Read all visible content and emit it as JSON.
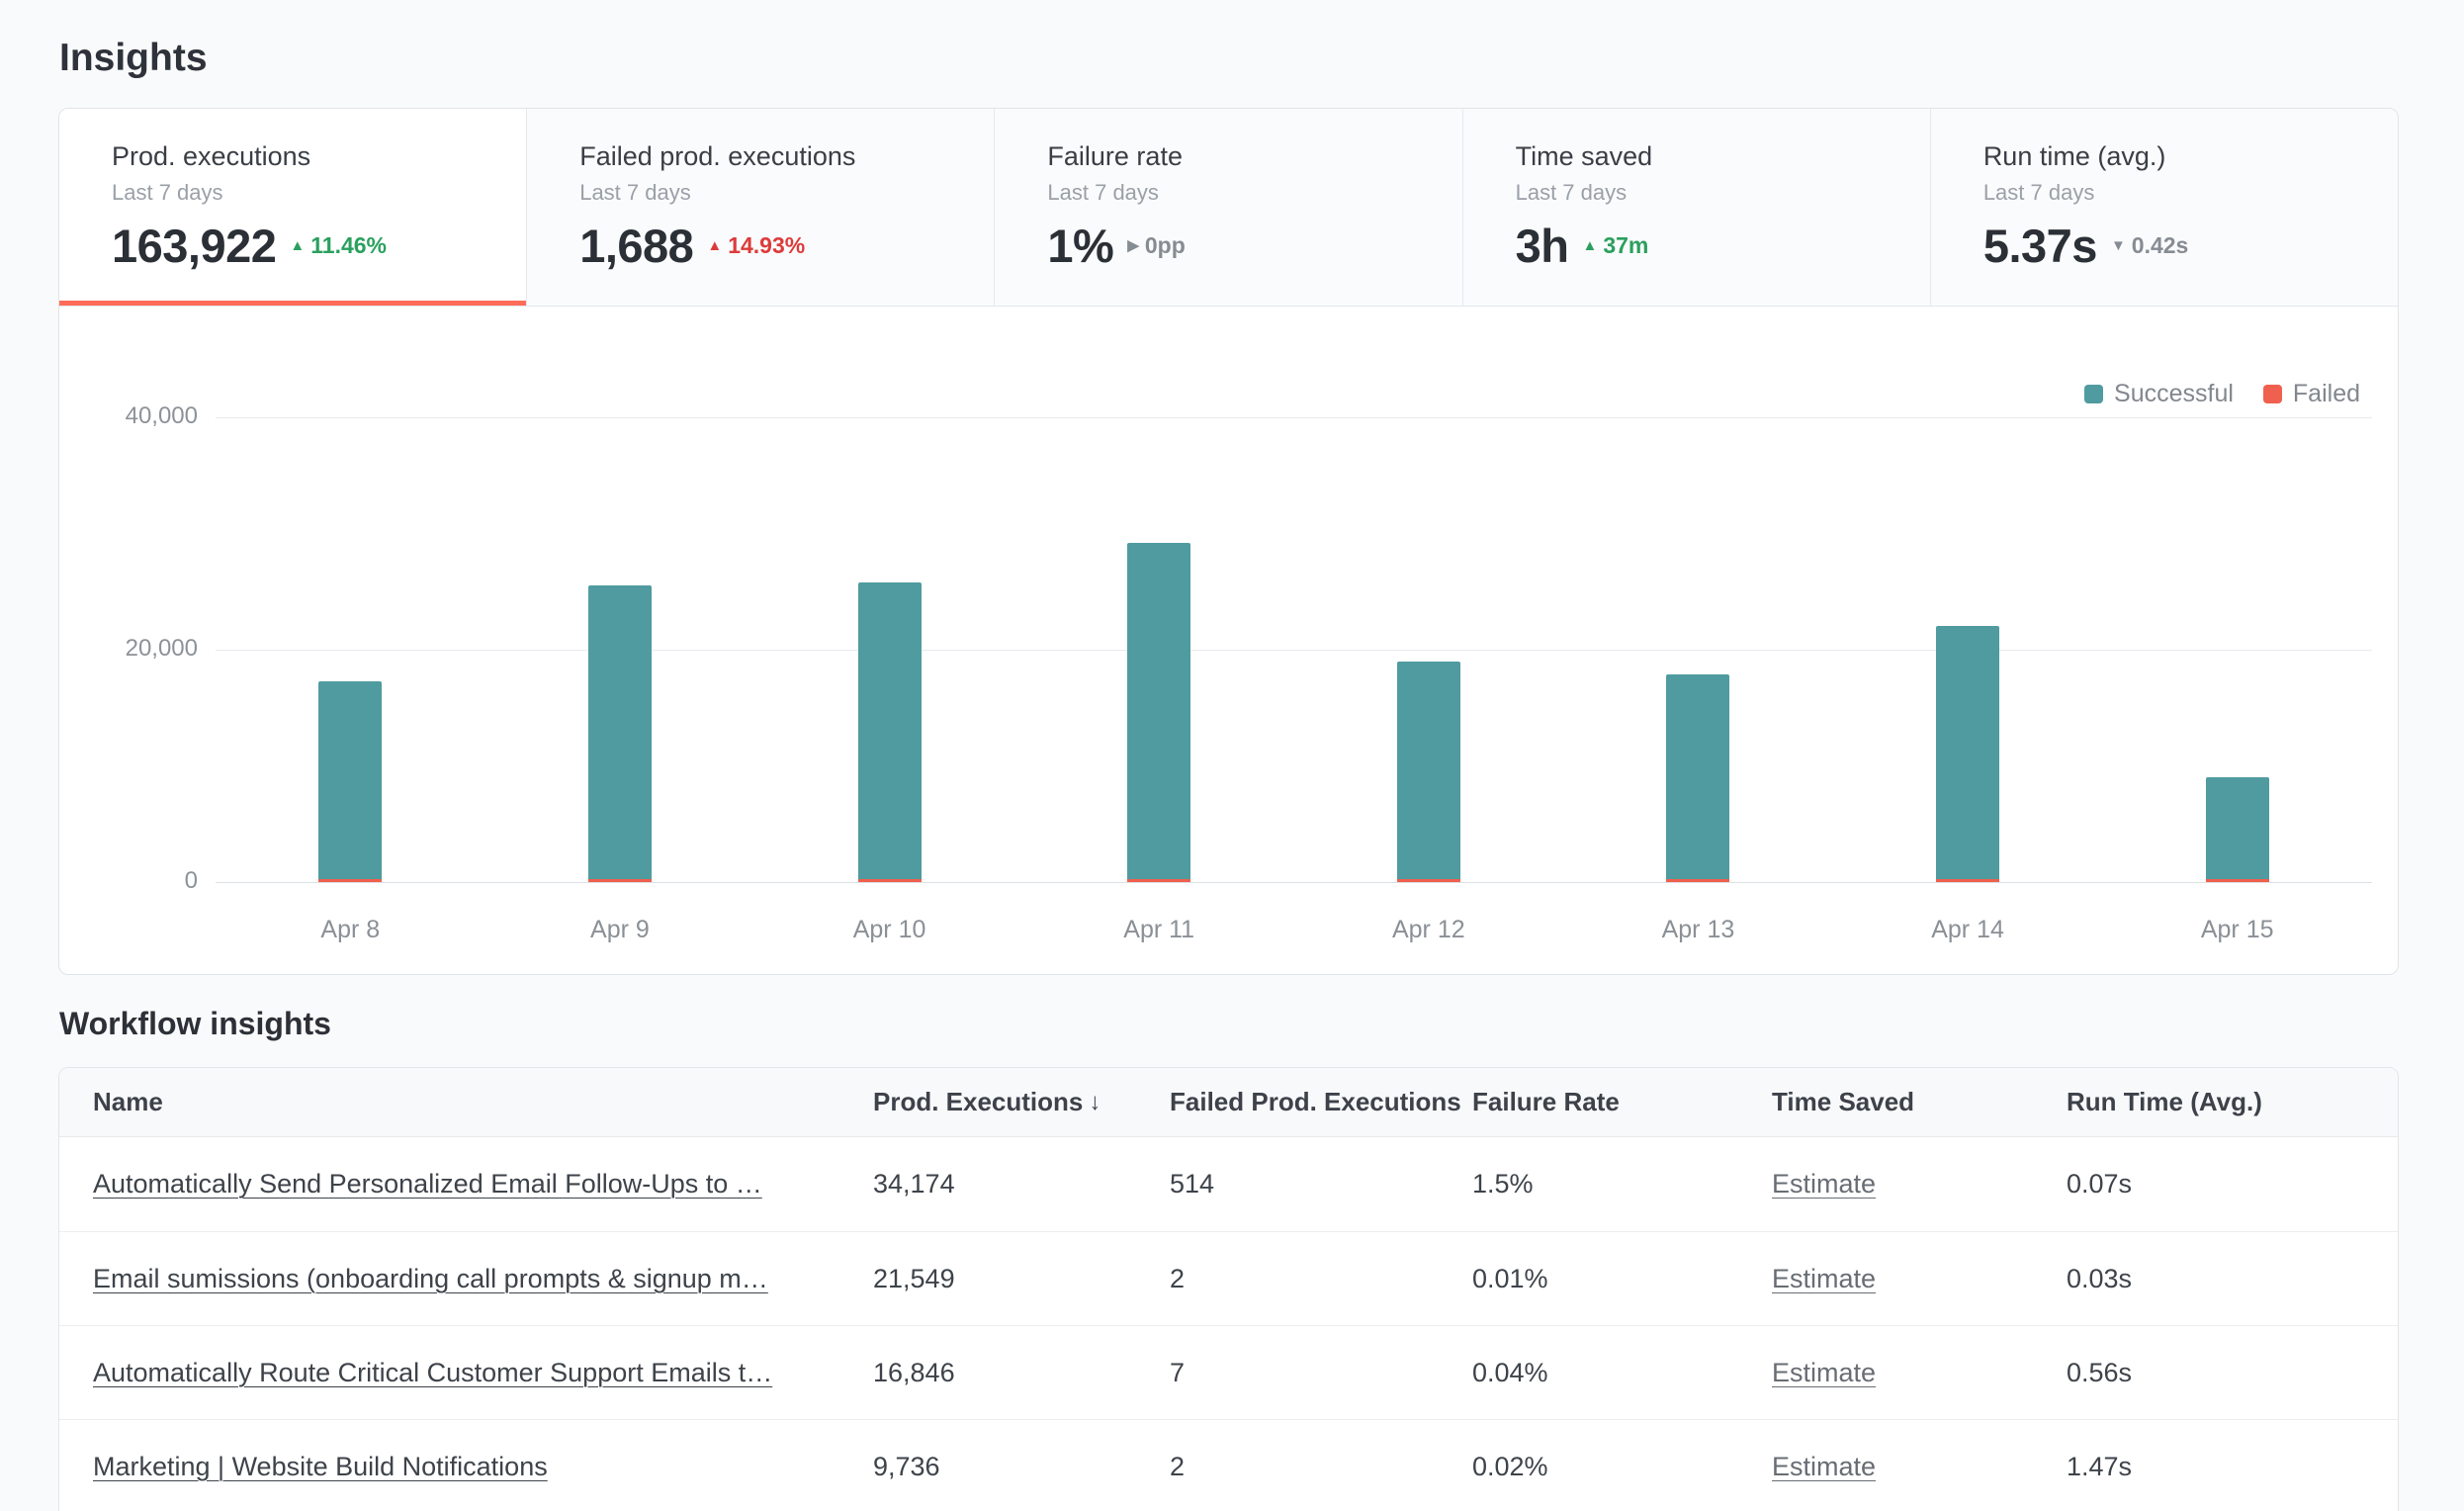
{
  "page": {
    "title": "Insights"
  },
  "colors": {
    "accent": "#ff6d5a",
    "success": "#2aa05e",
    "danger": "#dd3b3b",
    "neutral": "#868c93",
    "bar_successful": "#4f9b9f",
    "bar_failed": "#f0604e"
  },
  "icons": {
    "trend_up": "▲",
    "trend_down": "▼",
    "trend_flat": "▶",
    "sort_desc": "↓"
  },
  "stat_cards": [
    {
      "label": "Prod. executions",
      "sublabel": "Last 7 days",
      "value": "163,922",
      "delta": "11.46%",
      "trend": "up-good",
      "selected": true
    },
    {
      "label": "Failed prod. executions",
      "sublabel": "Last 7 days",
      "value": "1,688",
      "delta": "14.93%",
      "trend": "up-bad",
      "selected": false
    },
    {
      "label": "Failure rate",
      "sublabel": "Last 7 days",
      "value": "1%",
      "delta": "0pp",
      "trend": "flat",
      "selected": false
    },
    {
      "label": "Time saved",
      "sublabel": "Last 7 days",
      "value": "3h",
      "delta": "37m",
      "trend": "up-good",
      "selected": false
    },
    {
      "label": "Run time (avg.)",
      "sublabel": "Last 7 days",
      "value": "5.37s",
      "delta": "0.42s",
      "trend": "down-neutral",
      "selected": false
    }
  ],
  "chart_data": {
    "type": "bar",
    "stacked": true,
    "title": "",
    "xlabel": "",
    "ylabel": "",
    "categories": [
      "Apr 8",
      "Apr 9",
      "Apr 10",
      "Apr 11",
      "Apr 12",
      "Apr 13",
      "Apr 14",
      "Apr 15"
    ],
    "series": [
      {
        "name": "Successful",
        "color": "#4f9b9f",
        "values": [
          17000,
          25300,
          25500,
          28900,
          18700,
          17600,
          21800,
          8800
        ]
      },
      {
        "name": "Failed",
        "color": "#f0604e",
        "values": [
          180,
          260,
          260,
          290,
          190,
          180,
          220,
          90
        ]
      }
    ],
    "ylim": [
      0,
      40000
    ],
    "yticks": [
      {
        "value": 0,
        "label": "0"
      },
      {
        "value": 20000,
        "label": "20,000"
      },
      {
        "value": 40000,
        "label": "40,000"
      }
    ],
    "legend_position": "top-right",
    "grid": true
  },
  "workflow_insights": {
    "title": "Workflow insights",
    "columns": [
      {
        "label": "Name",
        "sort": null
      },
      {
        "label": "Prod. Executions",
        "sort": "desc"
      },
      {
        "label": "Failed Prod. Executions",
        "sort": null
      },
      {
        "label": "Failure Rate",
        "sort": null
      },
      {
        "label": "Time Saved",
        "sort": null
      },
      {
        "label": "Run Time (Avg.)",
        "sort": null
      }
    ],
    "rows": [
      {
        "name": "Automatically Send Personalized Email Follow-Ups to …",
        "prod_executions": "34,174",
        "failed_prod_executions": "514",
        "failure_rate": "1.5%",
        "time_saved": "Estimate",
        "run_time_avg": "0.07s"
      },
      {
        "name": "Email sumissions (onboarding call prompts & signup m…",
        "prod_executions": "21,549",
        "failed_prod_executions": "2",
        "failure_rate": "0.01%",
        "time_saved": "Estimate",
        "run_time_avg": "0.03s"
      },
      {
        "name": "Automatically Route Critical Customer Support Emails t…",
        "prod_executions": "16,846",
        "failed_prod_executions": "7",
        "failure_rate": "0.04%",
        "time_saved": "Estimate",
        "run_time_avg": "0.56s"
      },
      {
        "name": "Marketing | Website Build Notifications",
        "prod_executions": "9,736",
        "failed_prod_executions": "2",
        "failure_rate": "0.02%",
        "time_saved": "Estimate",
        "run_time_avg": "1.47s"
      }
    ]
  }
}
